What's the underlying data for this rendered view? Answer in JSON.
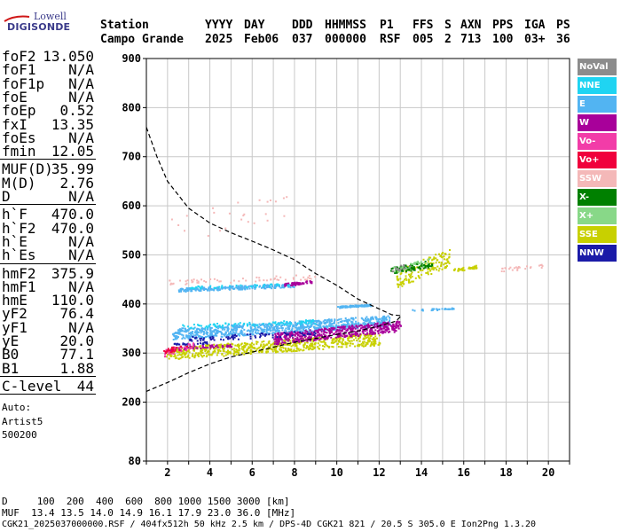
{
  "logo": {
    "line1": "Lowell",
    "line2": "DIGISONDE"
  },
  "header": {
    "row1": {
      "station": "Station",
      "yyyy": "YYYY",
      "day": "DAY",
      "ddd": "DDD",
      "hhmmss": "HHMMSS",
      "p1": "P1",
      "ffs": "FFS",
      "s": "S",
      "axn": "AXN",
      "pps": "PPS",
      "iga": "IGA",
      "ps": "PS"
    },
    "row2": {
      "station": "Campo Grande",
      "yyyy": "2025",
      "day": "Feb06",
      "ddd": "037",
      "hhmmss": "000000",
      "p1": "RSF",
      "ffs": "005",
      "s": "2",
      "axn": "713",
      "pps": "100",
      "iga": "03+",
      "ps": "36"
    }
  },
  "params": {
    "group1": [
      {
        "k": "foF2",
        "v": "13.050"
      },
      {
        "k": "foF1",
        "v": "N/A"
      },
      {
        "k": "foF1p",
        "v": "N/A"
      },
      {
        "k": "foE",
        "v": "N/A"
      },
      {
        "k": "foEp",
        "v": "0.52"
      },
      {
        "k": "fxI",
        "v": "13.35"
      },
      {
        "k": "foEs",
        "v": "N/A"
      },
      {
        "k": "fmin",
        "v": "12.05"
      }
    ],
    "group2": [
      {
        "k": "MUF(D)",
        "v": "35.99"
      },
      {
        "k": "M(D)",
        "v": "2.76"
      },
      {
        "k": "D",
        "v": "N/A"
      }
    ],
    "group3": [
      {
        "k": "h`F",
        "v": "470.0"
      },
      {
        "k": "h`F2",
        "v": "470.0"
      },
      {
        "k": "h`E",
        "v": "N/A"
      },
      {
        "k": "h`Es",
        "v": "N/A"
      }
    ],
    "group4": [
      {
        "k": "hmF2",
        "v": "375.9"
      },
      {
        "k": "hmF1",
        "v": "N/A"
      },
      {
        "k": "hmE",
        "v": "110.0"
      },
      {
        "k": "yF2",
        "v": "76.4"
      },
      {
        "k": "yF1",
        "v": "N/A"
      },
      {
        "k": "yE",
        "v": "20.0"
      },
      {
        "k": "B0",
        "v": "77.1"
      },
      {
        "k": "B1",
        "v": "1.88"
      }
    ],
    "group5": [
      {
        "k": "C-level",
        "v": "44"
      }
    ],
    "auto": [
      "Auto:",
      "Artist5",
      "500200"
    ]
  },
  "legend": [
    {
      "label": "NoVal",
      "color": "#8c8c8c"
    },
    {
      "label": "NNE",
      "color": "#1fd4f2"
    },
    {
      "label": "E",
      "color": "#52b4f2"
    },
    {
      "label": "W",
      "color": "#a8009a"
    },
    {
      "label": "Vo-",
      "color": "#f23ca8"
    },
    {
      "label": "Vo+",
      "color": "#f0003c"
    },
    {
      "label": "SSW",
      "color": "#f4b8b8"
    },
    {
      "label": "X-",
      "color": "#008000"
    },
    {
      "label": "X+",
      "color": "#88d888"
    },
    {
      "label": "SSE",
      "color": "#c8d000"
    },
    {
      "label": "NNW",
      "color": "#1a1aa8"
    }
  ],
  "bottom": {
    "line1": "D     100  200  400  600  800 1000 1500 3000 [km]",
    "line2": "MUF  13.4 13.5 14.0 14.9 16.1 17.9 23.0 36.0 [MHz]",
    "line3": "CGK21_2025037000000.RSF / 404fx512h 50 kHz 2.5 km / DPS-4D CGK21 821 / 20.5 S 305.0 E Ion2Png 1.3.20"
  },
  "chart_data": {
    "type": "scatter",
    "xlim": [
      1,
      21
    ],
    "ylim": [
      80,
      900
    ],
    "x_ticks": [
      2,
      4,
      6,
      8,
      10,
      12,
      14,
      16,
      18,
      20
    ],
    "y_ticks": [
      80,
      200,
      300,
      400,
      500,
      600,
      700,
      800,
      900
    ],
    "x_unit": "MHz",
    "y_unit": "km",
    "grid": true,
    "legend_position": "right",
    "profile_curve": [
      [
        1,
        760
      ],
      [
        1.5,
        700
      ],
      [
        2,
        650
      ],
      [
        3,
        595
      ],
      [
        4,
        565
      ],
      [
        5,
        545
      ],
      [
        6,
        528
      ],
      [
        7,
        510
      ],
      [
        8,
        490
      ],
      [
        9,
        462
      ],
      [
        10,
        438
      ],
      [
        11,
        410
      ],
      [
        12,
        390
      ],
      [
        12.6,
        378
      ],
      [
        13.05,
        376
      ],
      [
        12.8,
        365
      ],
      [
        12,
        355
      ],
      [
        11,
        345
      ],
      [
        10,
        338
      ],
      [
        9,
        330
      ],
      [
        8,
        322
      ],
      [
        7,
        312
      ],
      [
        6,
        302
      ],
      [
        5,
        292
      ],
      [
        4,
        278
      ],
      [
        3,
        260
      ],
      [
        2,
        240
      ],
      [
        1,
        222
      ]
    ],
    "series": [
      {
        "legend": "E",
        "color": "#52b4f2",
        "clusters": [
          {
            "x": [
              2.2,
              12.5
            ],
            "y0": 340,
            "y1": 385,
            "n": 900
          },
          {
            "x": [
              2.5,
              8.0
            ],
            "y0": 430,
            "y1": 445,
            "n": 220
          },
          {
            "x": [
              10.0,
              11.6
            ],
            "y0": 395,
            "y1": 402,
            "n": 80
          },
          {
            "x": [
              13.5,
              15.5
            ],
            "y0": 388,
            "y1": 395,
            "n": 30
          }
        ]
      },
      {
        "legend": "SSE",
        "color": "#c8d000",
        "clusters": [
          {
            "x": [
              1.9,
              12.0
            ],
            "y0": 300,
            "y1": 350,
            "n": 700
          },
          {
            "x": [
              12.8,
              15.3
            ],
            "y0": 452,
            "y1": 525,
            "n": 160
          },
          {
            "x": [
              15.5,
              16.6
            ],
            "y0": 470,
            "y1": 482,
            "n": 40
          }
        ]
      },
      {
        "legend": "W",
        "color": "#a8009a",
        "clusters": [
          {
            "x": [
              7.0,
              13.0
            ],
            "y0": 330,
            "y1": 375,
            "n": 520
          },
          {
            "x": [
              2.0,
              5.0
            ],
            "y0": 310,
            "y1": 322,
            "n": 60
          },
          {
            "x": [
              7.5,
              8.8
            ],
            "y0": 440,
            "y1": 452,
            "n": 50
          }
        ]
      },
      {
        "legend": "NNW",
        "color": "#1a1aa8",
        "clusters": [
          {
            "x": [
              3.0,
              9.0
            ],
            "y0": 330,
            "y1": 350,
            "n": 80
          },
          {
            "x": [
              2.0,
              4.0
            ],
            "y0": 318,
            "y1": 326,
            "n": 25
          }
        ]
      },
      {
        "legend": "NNE",
        "color": "#1fd4f2",
        "clusters": [
          {
            "x": [
              2.5,
              9.0
            ],
            "y0": 355,
            "y1": 372,
            "n": 90
          },
          {
            "x": [
              3.0,
              8.0
            ],
            "y0": 435,
            "y1": 445,
            "n": 40
          }
        ]
      },
      {
        "legend": "SSW",
        "color": "#f4b8b8",
        "clusters": [
          {
            "x": [
              2.0,
              9.0
            ],
            "y0": 445,
            "y1": 465,
            "n": 60
          },
          {
            "x": [
              17.5,
              20.0
            ],
            "y0": 470,
            "y1": 485,
            "n": 25
          },
          {
            "x": [
              2.0,
              8.0
            ],
            "y0": 545,
            "y1": 660,
            "n": 25
          }
        ]
      },
      {
        "legend": "X-",
        "color": "#008000",
        "clusters": [
          {
            "x": [
              12.5,
              14.5
            ],
            "y0": 468,
            "y1": 495,
            "n": 80
          }
        ]
      },
      {
        "legend": "X+",
        "color": "#88d888",
        "clusters": [
          {
            "x": [
              12.5,
              14.5
            ],
            "y0": 470,
            "y1": 500,
            "n": 30
          }
        ]
      },
      {
        "legend": "Vo-",
        "color": "#f23ca8",
        "clusters": [
          {
            "x": [
              1.8,
              3.2
            ],
            "y0": 300,
            "y1": 330,
            "n": 40
          }
        ]
      },
      {
        "legend": "Vo+",
        "color": "#f0003c",
        "clusters": [
          {
            "x": [
              1.8,
              3.0
            ],
            "y0": 305,
            "y1": 325,
            "n": 25
          }
        ]
      },
      {
        "legend": "NoVal",
        "color": "#8c8c8c",
        "clusters": [
          {
            "x": [
              12.5,
              13.5
            ],
            "y0": 470,
            "y1": 490,
            "n": 15
          }
        ]
      }
    ]
  }
}
